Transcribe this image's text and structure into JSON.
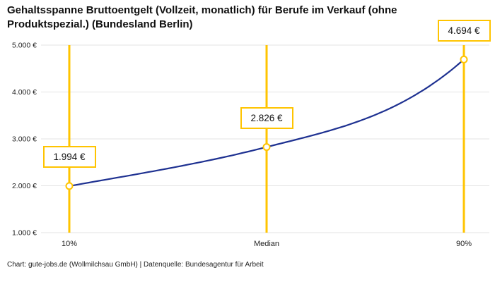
{
  "title": "Gehaltsspanne Bruttoentgelt (Vollzeit, monatlich) für Berufe im Verkauf (ohne Produktspezial.) (Bundesland Berlin)",
  "footer": "Chart: gute-jobs.de (Wollmilchsau GmbH) | Datenquelle: Bundesagentur für Arbeit",
  "colors": {
    "accent_yellow": "#ffc400",
    "line_navy": "#1e3191",
    "grid": "#e3e3e3",
    "marker_fill": "#ffffff",
    "text": "#222222"
  },
  "chart_data": {
    "type": "line",
    "title": "Gehaltsspanne Bruttoentgelt (Vollzeit, monatlich) für Berufe im Verkauf (ohne Produktspezial.) (Bundesland Berlin)",
    "xlabel": "",
    "ylabel": "",
    "grid": "horizontal",
    "legend": "none",
    "ylim": [
      1000,
      5000
    ],
    "y_ticks": [
      {
        "value": 5000,
        "label": "5.000 €"
      },
      {
        "value": 4000,
        "label": "4.000 €"
      },
      {
        "value": 3000,
        "label": "3.000 €"
      },
      {
        "value": 2000,
        "label": "2.000 €"
      },
      {
        "value": 1000,
        "label": "1.000 €"
      }
    ],
    "categories": [
      "10%",
      "Median",
      "90%"
    ],
    "points": [
      {
        "label": "10%",
        "value": 1994,
        "value_label": "1.994 €"
      },
      {
        "label": "Median",
        "value": 2826,
        "value_label": "2.826 €"
      },
      {
        "label": "90%",
        "value": 4694,
        "value_label": "4.694 €"
      }
    ],
    "annotations": "each percentile has a vertical yellow marker line with a yellow-bordered value box above the data point"
  }
}
